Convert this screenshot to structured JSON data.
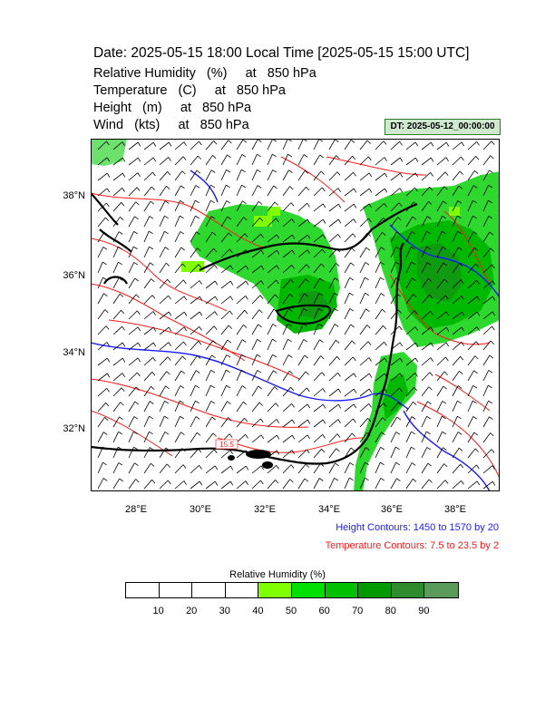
{
  "header": {
    "title": "Date: 2025-05-15  18:00 Local Time [2025-05-15  15:00 UTC]",
    "variables": [
      "Relative Humidity   (%)     at   850 hPa",
      "Temperature   (C)     at   850 hPa",
      "Height   (m)     at   850 hPa",
      "Wind   (kts)     at   850 hPa"
    ],
    "dt_label": "DT: 2025-05-12_00:00:00"
  },
  "map": {
    "x_ticks": [
      "28°E",
      "30°E",
      "32°E",
      "34°E",
      "36°E",
      "38°E"
    ],
    "y_ticks": [
      "38°N",
      "36°N",
      "34°N",
      "32°N"
    ],
    "contour_label": "15.5",
    "colors": {
      "height_contour": "#1a1aff",
      "temperature_contour": "#ff1a1a",
      "coastline": "#000000",
      "wind_barb": "#000000"
    }
  },
  "notes": {
    "height": "Height Contours: 1450 to 1570 by 20",
    "temperature": "Temperature Contours: 7.5 to 23.5 by 2"
  },
  "legend": {
    "title": "Relative Humidity  (%)",
    "labels": [
      "10",
      "20",
      "30",
      "40",
      "50",
      "60",
      "70",
      "80",
      "90"
    ],
    "colors": [
      "#ffffff",
      "#ffffff",
      "#ffffff",
      "#ffffff",
      "#80ff00",
      "#00e000",
      "#00c000",
      "#009a00",
      "#2e8b2e",
      "#5a9a5a"
    ]
  }
}
